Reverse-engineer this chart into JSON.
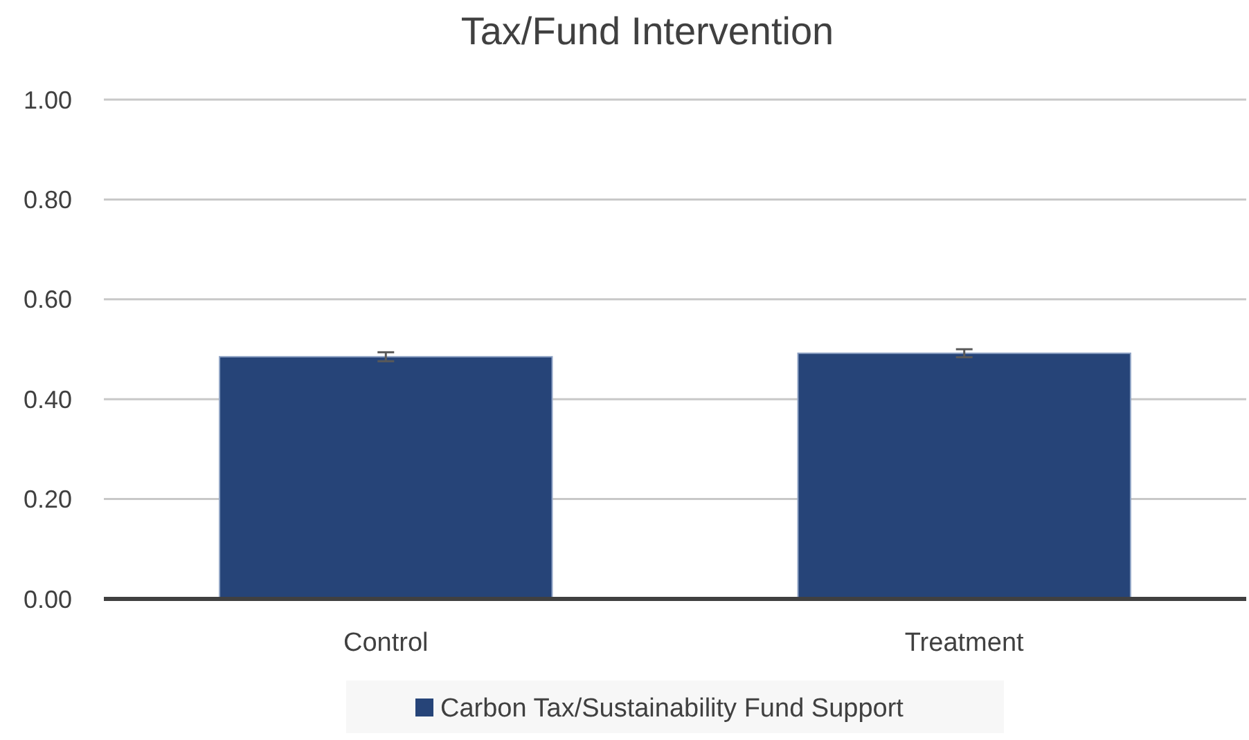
{
  "chart_data": {
    "type": "bar",
    "title": "Tax/Fund Intervention",
    "categories": [
      "Control",
      "Treatment"
    ],
    "series": [
      {
        "name": "Carbon Tax/Sustainability Fund Support",
        "color": "#264478",
        "values": [
          0.485,
          0.492
        ],
        "errors": [
          0.009,
          0.008
        ]
      }
    ],
    "ylim": [
      0,
      1
    ],
    "yticks": [
      {
        "value": 0,
        "label": "0.00"
      },
      {
        "value": 0.2,
        "label": "0.20"
      },
      {
        "value": 0.4,
        "label": "0.40"
      },
      {
        "value": 0.6,
        "label": "0.60"
      },
      {
        "value": 0.8,
        "label": "0.80"
      },
      {
        "value": 1,
        "label": "1.00"
      }
    ],
    "grid": "y",
    "legend": "bottom"
  }
}
